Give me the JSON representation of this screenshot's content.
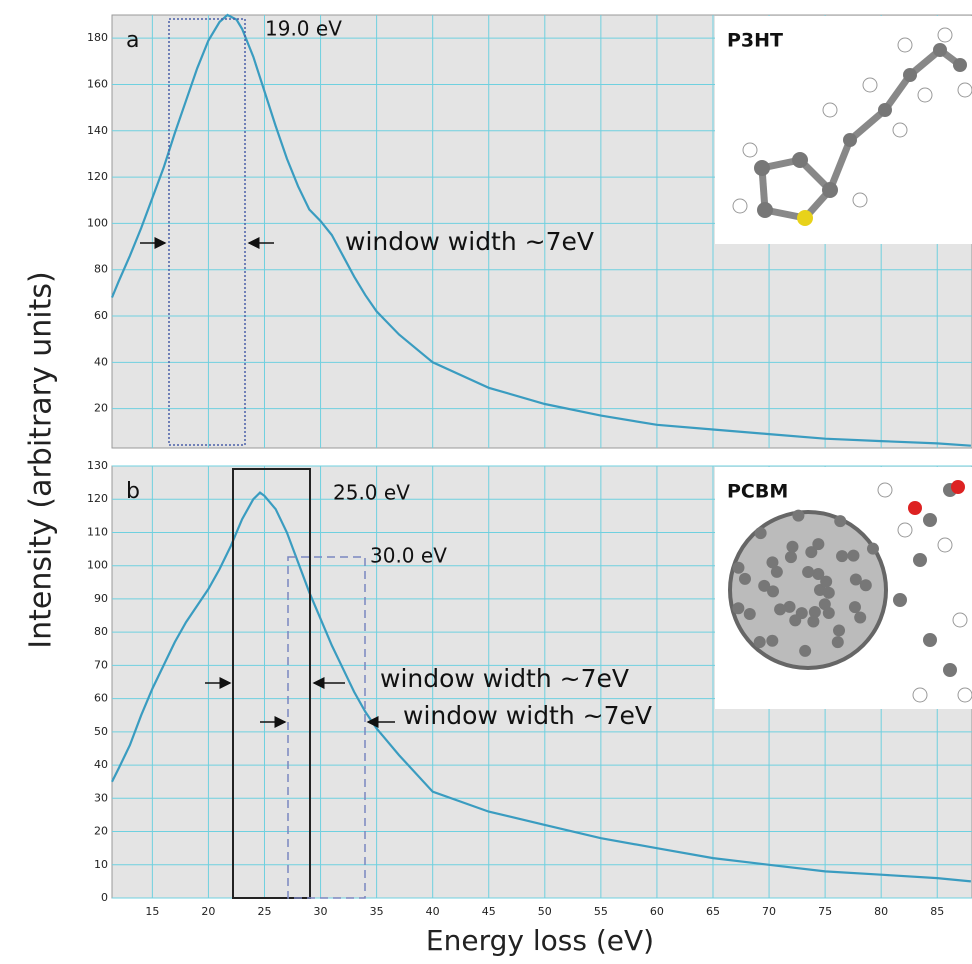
{
  "figure_labels": {
    "y_axis_label": "Intensity (arbitrary units)",
    "x_axis_label": "Energy loss (eV)"
  },
  "chart_data": [
    {
      "type": "line",
      "panel_label": "a",
      "inset_title": "P3HT",
      "x": [
        11.4,
        12,
        13,
        14,
        15,
        16,
        17,
        18,
        19,
        20,
        21,
        21.7,
        22.5,
        23,
        24,
        25,
        26,
        27,
        28,
        29,
        30,
        31,
        32,
        33,
        34,
        35,
        37,
        40,
        45,
        50,
        55,
        60,
        65,
        70,
        75,
        80,
        85,
        88
      ],
      "series": [
        {
          "color": "#3a9cc0",
          "values": [
            68,
            75,
            86,
            98,
            111,
            124,
            139,
            153,
            167,
            179,
            187,
            190,
            188,
            184,
            172,
            157,
            142,
            128,
            116,
            106,
            101,
            95,
            86,
            77,
            69,
            62,
            52,
            40,
            29,
            22,
            17,
            13,
            11,
            9,
            7,
            6,
            5,
            4
          ]
        }
      ],
      "xlim": [
        11.4,
        88.1
      ],
      "xticks": [
        15,
        20,
        25,
        30,
        35,
        40,
        45,
        50,
        55,
        60,
        65,
        70,
        75,
        80,
        85
      ],
      "ylim": [
        3,
        190
      ],
      "yticks": [
        20,
        40,
        60,
        80,
        100,
        120,
        140,
        160,
        180
      ],
      "grid": true,
      "annotations": [
        "19.0 eV",
        "window width ~7eV"
      ]
    },
    {
      "type": "line",
      "panel_label": "b",
      "inset_title": "PCBM",
      "x": [
        11.4,
        12,
        13,
        14,
        15,
        16,
        17,
        18,
        19,
        20,
        21,
        22,
        23,
        24,
        24.6,
        25,
        26,
        27,
        28,
        29,
        30,
        31,
        32,
        33,
        34,
        35,
        37,
        40,
        45,
        50,
        55,
        60,
        65,
        70,
        75,
        80,
        85,
        88
      ],
      "series": [
        {
          "color": "#3a9cc0",
          "values": [
            35,
            39,
            46,
            55,
            63,
            70,
            77,
            83,
            88,
            93,
            99,
            106,
            114,
            120,
            122,
            121,
            117,
            110,
            101,
            92,
            84,
            76,
            69,
            62,
            56,
            51,
            43,
            32,
            26,
            22,
            18,
            15,
            12,
            10,
            8,
            7,
            6,
            5
          ]
        }
      ],
      "xlim": [
        11.4,
        88.1
      ],
      "xticks": [
        15,
        20,
        25,
        30,
        35,
        40,
        45,
        50,
        55,
        60,
        65,
        70,
        75,
        80,
        85
      ],
      "ylim": [
        0,
        130
      ],
      "yticks": [
        0,
        10,
        20,
        30,
        40,
        50,
        60,
        70,
        80,
        90,
        100,
        110,
        120,
        130
      ],
      "grid": true,
      "annotations": [
        "25.0 eV",
        "30.0 eV",
        "window width ~7eV",
        "window width ~7eV"
      ]
    }
  ]
}
